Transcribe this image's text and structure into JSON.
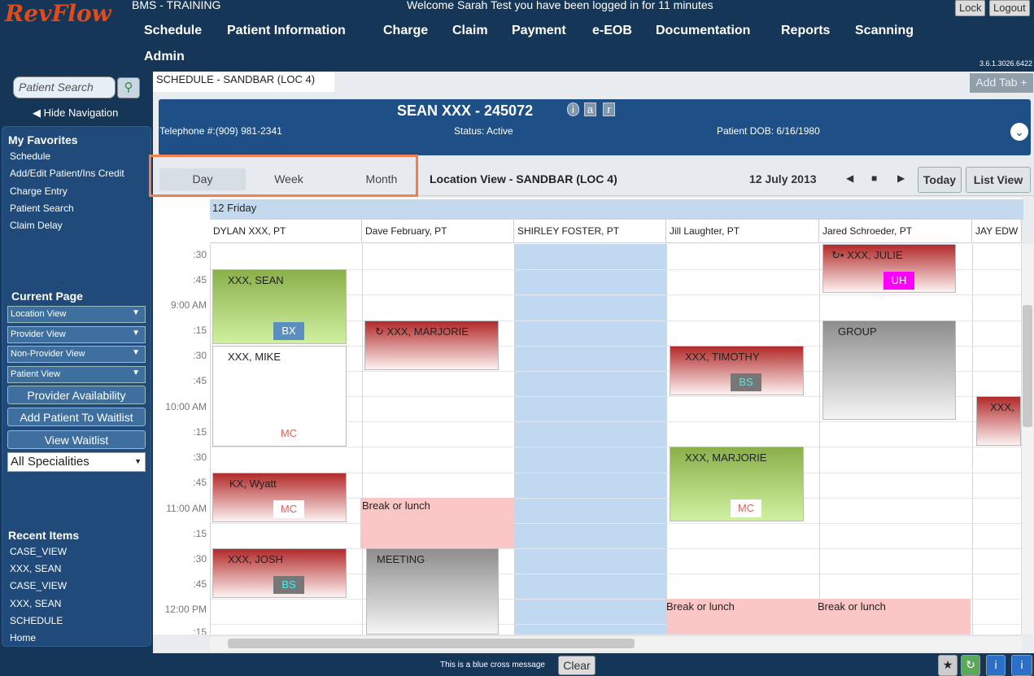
{
  "app": {
    "logo": "RevFlow",
    "env": "BMS - TRAINING",
    "welcome": "Welcome Sarah Test you have been logged in for 11 minutes",
    "lock": "Lock",
    "logout": "Logout",
    "version": "3.6.1.3026.6422"
  },
  "nav": [
    "Schedule",
    "Patient Information",
    "Charge",
    "Claim",
    "Payment",
    "e-EOB",
    "Documentation",
    "Reports",
    "Scanning",
    "Admin"
  ],
  "left": {
    "search_placeholder": "Patient Search",
    "hide_nav": "Hide Navigation",
    "favorites_title": "My Favorites",
    "favorites": [
      "Schedule",
      "Add/Edit Patient/Ins Credit",
      "Charge Entry",
      "Patient Search",
      "Claim Delay"
    ],
    "current_title": "Current Page",
    "views": [
      "Location View",
      "Provider View",
      "Non-Provider View",
      "Patient View"
    ],
    "buttons": [
      "Provider Availability",
      "Add Patient To Waitlist",
      "View Waitlist"
    ],
    "specialities": "All Specialities",
    "recent_title": "Recent Items",
    "recent": [
      "CASE_VIEW",
      "XXX, SEAN",
      "CASE_VIEW",
      "XXX, SEAN",
      "SCHEDULE",
      "Home"
    ]
  },
  "tabs": {
    "current": "SCHEDULE - SANDBAR (LOC 4)",
    "add": "Add Tab +"
  },
  "patient": {
    "name": "SEAN  XXX - 245072",
    "badges": [
      "i",
      "a",
      "r"
    ],
    "phone": "Telephone #:(909) 981-2341",
    "status": "Status: Active",
    "dob": "Patient DOB: 6/16/1980"
  },
  "view": {
    "tabs": [
      "Day",
      "Week",
      "Month"
    ],
    "location": "Location View - SANDBAR (LOC 4)",
    "date": "12 July 2013",
    "today": "Today",
    "list": "List View"
  },
  "schedule": {
    "day": "12 Friday",
    "providers": [
      "DYLAN XXX, PT",
      "Dave February, PT",
      "SHIRLEY FOSTER, PT",
      "Jill Laughter, PT",
      "Jared Schroeder, PT",
      "JAY EDW"
    ],
    "times": [
      ":30",
      ":45",
      "9:00 AM",
      ":15",
      ":30",
      ":45",
      "10:00 AM",
      ":15",
      ":30",
      ":45",
      "11:00 AM",
      ":15",
      ":30",
      ":45",
      "12:00 PM",
      ":15"
    ],
    "appointments": [
      {
        "name": "XXX, SEAN",
        "tag": "BX"
      },
      {
        "name": "XXX, MIKE",
        "tag": "MC"
      },
      {
        "name": "KX, Wyatt",
        "tag": "MC"
      },
      {
        "name": "XXX, JOSH",
        "tag": "BS"
      },
      {
        "name": "XXX, MARJORIE",
        "tag": ""
      },
      {
        "name": "Break or lunch",
        "tag": ""
      },
      {
        "name": "MEETING",
        "tag": ""
      },
      {
        "name": "XXX, TIMOTHY",
        "tag": "BS"
      },
      {
        "name": "XXX, MARJORIE",
        "tag": "MC"
      },
      {
        "name": "Break or lunch",
        "tag": ""
      },
      {
        "name": "XXX, JULIE",
        "tag": "UH"
      },
      {
        "name": "GROUP",
        "tag": ""
      },
      {
        "name": "Break or lunch",
        "tag": ""
      },
      {
        "name": "XXX,",
        "tag": ""
      }
    ]
  },
  "status": {
    "message": "This is a blue cross message",
    "clear": "Clear"
  },
  "colors": {
    "header": "#163658",
    "accent": "#e34a1a",
    "appt_red": "#b22a2a",
    "appt_green": "#8ab04a",
    "highlight": "#ef8050"
  }
}
